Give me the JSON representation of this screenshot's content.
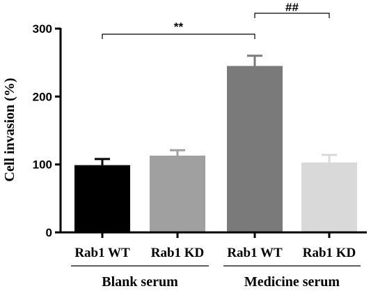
{
  "chart_data": {
    "type": "bar",
    "ylabel": "Cell invasion (%)",
    "ylim": [
      0,
      300
    ],
    "yticks": [
      0,
      100,
      200,
      300
    ],
    "categories": [
      "Rab1 WT",
      "Rab1 KD",
      "Rab1 WT",
      "Rab1 KD"
    ],
    "values": [
      99,
      113,
      245,
      103
    ],
    "errors": [
      9,
      8,
      15,
      11
    ],
    "bar_colors": [
      "#000000",
      "#a0a0a0",
      "#7a7a7a",
      "#d9d9d9"
    ],
    "groups": [
      {
        "label": "Blank serum",
        "bars": [
          0,
          1
        ]
      },
      {
        "label": "Medicine serum",
        "bars": [
          2,
          3
        ]
      }
    ],
    "significance": [
      {
        "from": 0,
        "to": 2,
        "label": "**"
      },
      {
        "from": 2,
        "to": 3,
        "label": "##"
      }
    ],
    "grid": false
  }
}
